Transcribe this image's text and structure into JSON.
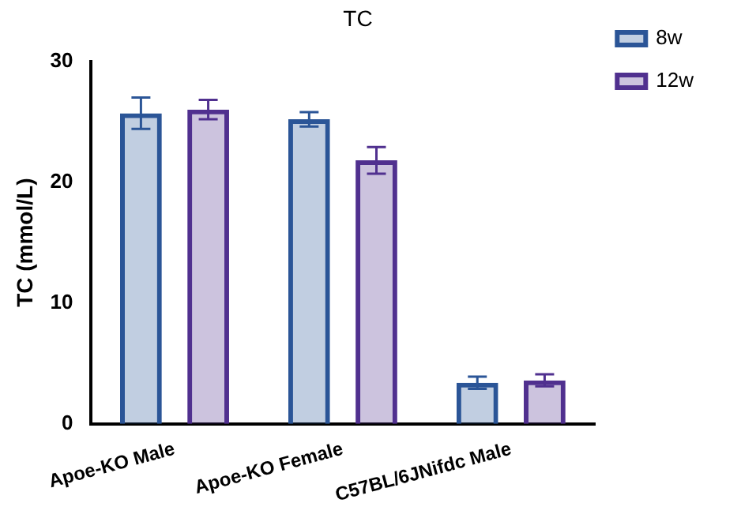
{
  "chart_data": {
    "type": "bar",
    "title": "TC",
    "ylabel": "TC (mmol/L)",
    "categories": [
      "Apoe-KO Male",
      "Apoe-KO Female",
      "C57BL/6JNifdc Male"
    ],
    "series": [
      {
        "name": "8w",
        "color": "#2b5597",
        "values": [
          25.7,
          25.2,
          3.4
        ],
        "errors": [
          1.3,
          0.6,
          0.5
        ]
      },
      {
        "name": "12w",
        "color": "#50308f",
        "values": [
          26.0,
          21.8,
          3.6
        ],
        "errors": [
          0.8,
          1.1,
          0.5
        ]
      }
    ],
    "ylim": [
      0,
      30
    ],
    "yticks": [
      0,
      10,
      20,
      30
    ],
    "grid": false,
    "legend": "top right"
  }
}
